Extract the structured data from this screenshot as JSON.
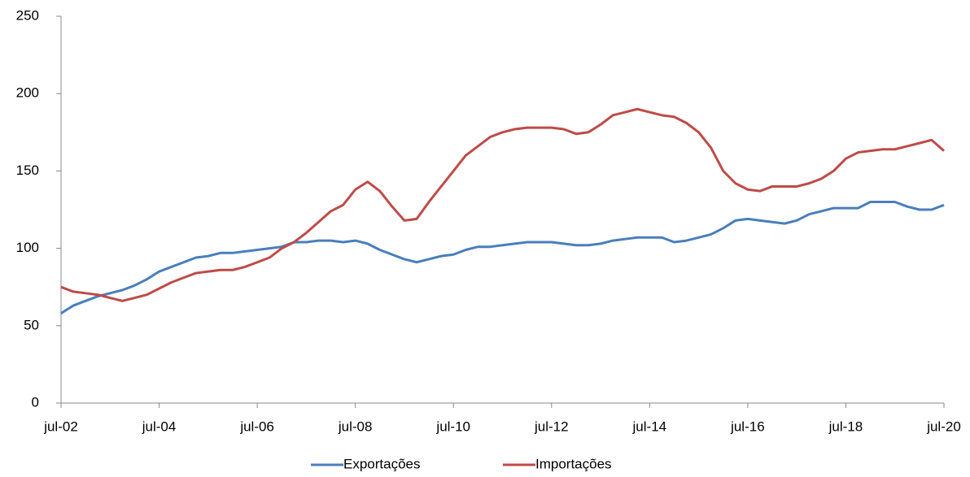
{
  "chart_data": {
    "type": "line",
    "categories": [
      "jul-02",
      null,
      null,
      null,
      null,
      null,
      null,
      null,
      "jul-04",
      null,
      null,
      null,
      null,
      null,
      null,
      null,
      "jul-06",
      null,
      null,
      null,
      null,
      null,
      null,
      null,
      "jul-08",
      null,
      null,
      null,
      null,
      null,
      null,
      null,
      "jul-10",
      null,
      null,
      null,
      null,
      null,
      null,
      null,
      "jul-12",
      null,
      null,
      null,
      null,
      null,
      null,
      null,
      "jul-14",
      null,
      null,
      null,
      null,
      null,
      null,
      null,
      "jul-16",
      null,
      null,
      null,
      null,
      null,
      null,
      null,
      "jul-18",
      null,
      null,
      null,
      null,
      null,
      null,
      null,
      "jul-20"
    ],
    "series": [
      {
        "name": "Exportações",
        "color": "#4a7ebb",
        "values": [
          58,
          63,
          66,
          69,
          71,
          73,
          76,
          80,
          85,
          88,
          91,
          94,
          95,
          97,
          97,
          98,
          99,
          100,
          101,
          104,
          104,
          105,
          105,
          104,
          105,
          103,
          99,
          96,
          93,
          91,
          93,
          95,
          96,
          99,
          101,
          101,
          102,
          103,
          104,
          104,
          104,
          103,
          102,
          102,
          103,
          105,
          106,
          107,
          107,
          107,
          104,
          105,
          107,
          109,
          113,
          118,
          119,
          118,
          117,
          116,
          118,
          122,
          124,
          126,
          126,
          126,
          130,
          130,
          130,
          127,
          125,
          125,
          128
        ]
      },
      {
        "name": "Importações",
        "color": "#be4b48",
        "values": [
          75,
          72,
          71,
          70,
          68,
          66,
          68,
          70,
          74,
          78,
          81,
          84,
          85,
          86,
          86,
          88,
          91,
          94,
          100,
          104,
          110,
          117,
          124,
          128,
          138,
          143,
          137,
          127,
          118,
          119,
          130,
          140,
          150,
          160,
          166,
          172,
          175,
          177,
          178,
          178,
          178,
          177,
          174,
          175,
          180,
          186,
          188,
          190,
          188,
          186,
          185,
          181,
          175,
          165,
          150,
          142,
          138,
          137,
          140,
          140,
          140,
          142,
          145,
          150,
          158,
          162,
          163,
          164,
          164,
          166,
          168,
          170,
          163
        ]
      }
    ],
    "ylim": [
      0,
      250
    ],
    "yticks": [
      0,
      50,
      100,
      150,
      200,
      250
    ],
    "legend": "bottom"
  }
}
